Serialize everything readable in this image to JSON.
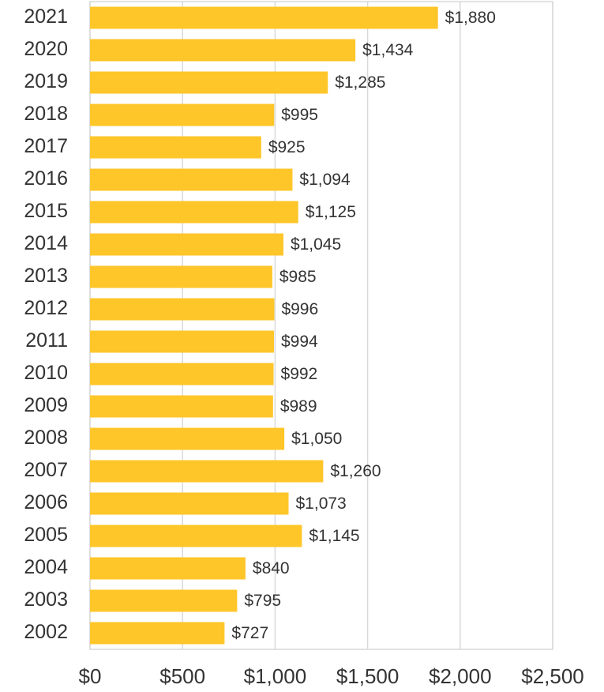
{
  "chart_data": {
    "type": "bar",
    "orientation": "horizontal",
    "categories": [
      "2021",
      "2020",
      "2019",
      "2018",
      "2017",
      "2016",
      "2015",
      "2014",
      "2013",
      "2012",
      "2011",
      "2010",
      "2009",
      "2008",
      "2007",
      "2006",
      "2005",
      "2004",
      "2003",
      "2002"
    ],
    "values": [
      1880,
      1434,
      1285,
      995,
      925,
      1094,
      1125,
      1045,
      985,
      996,
      994,
      992,
      989,
      1050,
      1260,
      1073,
      1145,
      840,
      795,
      727
    ],
    "value_labels": [
      "$1,880",
      "$1,434",
      "$1,285",
      "$995",
      "$925",
      "$1,094",
      "$1,125",
      "$1,045",
      "$985",
      "$996",
      "$994",
      "$992",
      "$989",
      "$1,050",
      "$1,260",
      "$1,073",
      "$1,145",
      "$840",
      "$795",
      "$727"
    ],
    "color": "#ffc629",
    "xlim": [
      0,
      2500
    ],
    "xticks": [
      {
        "value": 0,
        "label": "$0"
      },
      {
        "value": 500,
        "label": "$500"
      },
      {
        "value": 1000,
        "label": "$1,000"
      },
      {
        "value": 1500,
        "label": "$1,500"
      },
      {
        "value": 2000,
        "label": "$2,000"
      },
      {
        "value": 2500,
        "label": "$2,500"
      }
    ],
    "grid": true
  }
}
